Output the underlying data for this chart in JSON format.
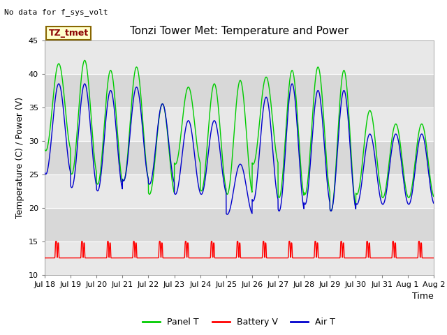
{
  "title": "Tonzi Tower Met: Temperature and Power",
  "ylabel": "Temperature (C) / Power (V)",
  "xlabel": "Time",
  "top_annotation": "No data for f_sys_volt",
  "box_label": "TZ_tmet",
  "ylim": [
    10,
    45
  ],
  "yticks": [
    10,
    15,
    20,
    25,
    30,
    35,
    40,
    45
  ],
  "plot_bg": "#ffffff",
  "fig_bg": "#ffffff",
  "band1_color": "#e8e8e8",
  "band2_color": "#d8d8d8",
  "panel_color": "#00cc00",
  "battery_color": "#ff0000",
  "air_color": "#0000cc",
  "legend_labels": [
    "Panel T",
    "Battery V",
    "Air T"
  ],
  "xtick_labels": [
    "Jul 18",
    "Jul 19",
    "Jul 20",
    "Jul 21",
    "Jul 22",
    "Jul 23",
    "Jul 24",
    "Jul 25",
    "Jul 26",
    "Jul 27",
    "Jul 28",
    "Jul 29",
    "Jul 30",
    "Jul 31",
    "Aug 1",
    "Aug 2"
  ],
  "panel_peaks": [
    41.5,
    42.0,
    40.5,
    41.0,
    35.5,
    38.0,
    38.5,
    39.0,
    39.5,
    40.5,
    41.0,
    40.5,
    34.5,
    32.5
  ],
  "panel_troughs": [
    28.5,
    25.0,
    23.5,
    24.0,
    22.0,
    26.5,
    22.5,
    22.0,
    26.5,
    21.5,
    22.0,
    19.5,
    22.0,
    21.5
  ],
  "air_peaks": [
    38.5,
    38.5,
    37.5,
    38.0,
    35.5,
    33.0,
    33.0,
    26.5,
    36.5,
    38.5,
    37.5,
    37.5,
    31.0,
    31.0
  ],
  "air_troughs": [
    25.0,
    23.0,
    22.5,
    24.0,
    23.5,
    22.0,
    22.0,
    19.0,
    21.0,
    19.5,
    20.5,
    19.5,
    20.5,
    20.5
  ],
  "battery_base": 12.5,
  "battery_peak": 15.0,
  "title_fontsize": 11,
  "axis_label_fontsize": 9,
  "tick_fontsize": 8,
  "legend_fontsize": 9
}
